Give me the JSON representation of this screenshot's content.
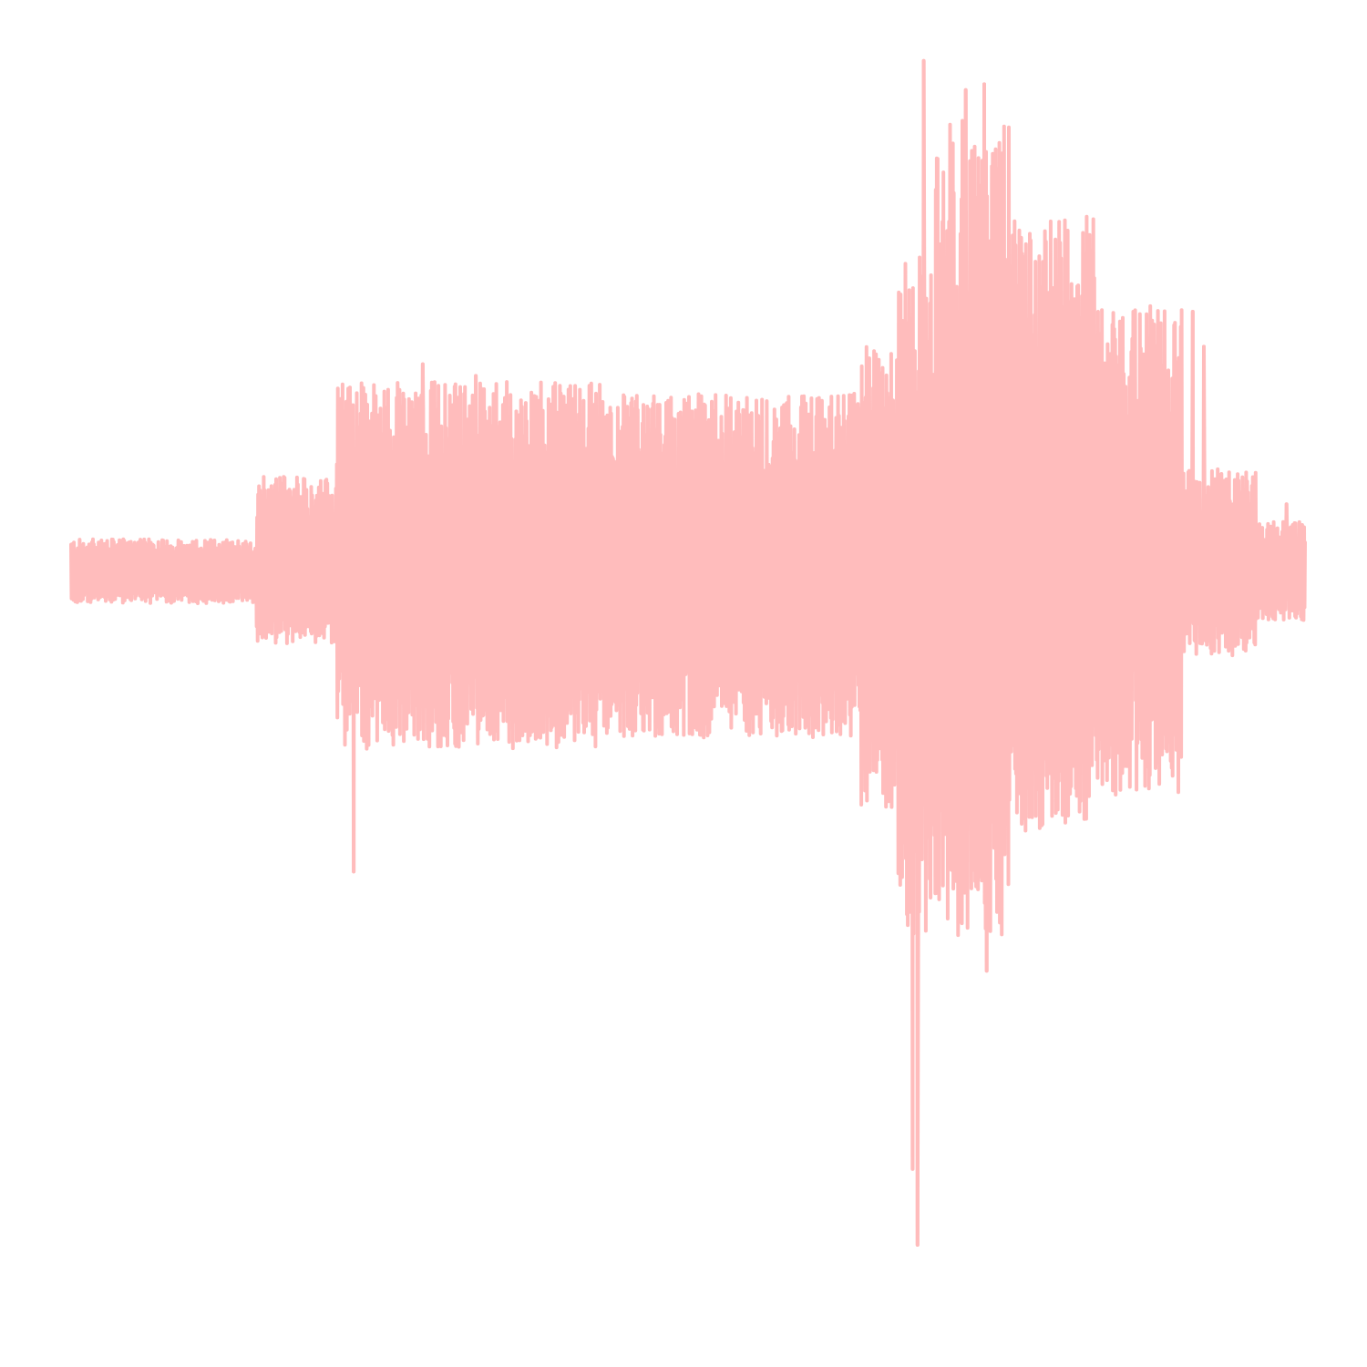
{
  "chart_data": {
    "type": "line",
    "title": "",
    "xlabel": "",
    "ylabel": "",
    "axes_visible": false,
    "grid": false,
    "legend": "none",
    "color": "#ffbcbc",
    "series": [
      {
        "name": "",
        "description": "",
        "segments": [
          {
            "x_start": 0.0,
            "x_end": 0.15,
            "amp_top": 0.06,
            "amp_bottom": 0.05
          },
          {
            "x_start": 0.15,
            "x_end": 0.215,
            "amp_top": 0.17,
            "amp_bottom": 0.12
          },
          {
            "x_start": 0.215,
            "x_end": 0.43,
            "amp_top": 0.33,
            "amp_bottom": 0.3
          },
          {
            "x_start": 0.43,
            "x_end": 0.64,
            "amp_top": 0.31,
            "amp_bottom": 0.28
          },
          {
            "x_start": 0.64,
            "x_end": 0.67,
            "amp_top": 0.39,
            "amp_bottom": 0.4
          },
          {
            "x_start": 0.67,
            "x_end": 0.7,
            "amp_top": 0.55,
            "amp_bottom": 0.63
          },
          {
            "x_start": 0.7,
            "x_end": 0.76,
            "amp_top": 0.78,
            "amp_bottom": 0.62
          },
          {
            "x_start": 0.76,
            "x_end": 0.83,
            "amp_top": 0.62,
            "amp_bottom": 0.44
          },
          {
            "x_start": 0.83,
            "x_end": 0.9,
            "amp_top": 0.46,
            "amp_bottom": 0.38
          },
          {
            "x_start": 0.9,
            "x_end": 0.96,
            "amp_top": 0.18,
            "amp_bottom": 0.14
          },
          {
            "x_start": 0.96,
            "x_end": 1.0,
            "amp_top": 0.09,
            "amp_bottom": 0.08
          }
        ],
        "peaks": [
          {
            "x": 0.226,
            "y": 0.32
          },
          {
            "x": 0.229,
            "y": -0.51
          },
          {
            "x": 0.285,
            "y": 0.36
          },
          {
            "x": 0.328,
            "y": 0.34
          },
          {
            "x": 0.691,
            "y": 0.88
          },
          {
            "x": 0.682,
            "y": -1.02
          },
          {
            "x": 0.686,
            "y": -1.15
          },
          {
            "x": 0.725,
            "y": 0.83
          },
          {
            "x": 0.74,
            "y": 0.84
          },
          {
            "x": 0.742,
            "y": -0.68
          },
          {
            "x": 0.909,
            "y": 0.45
          },
          {
            "x": 0.918,
            "y": 0.39
          },
          {
            "x": 0.985,
            "y": 0.12
          }
        ],
        "y_range": [
          -1.15,
          0.88
        ]
      }
    ]
  }
}
